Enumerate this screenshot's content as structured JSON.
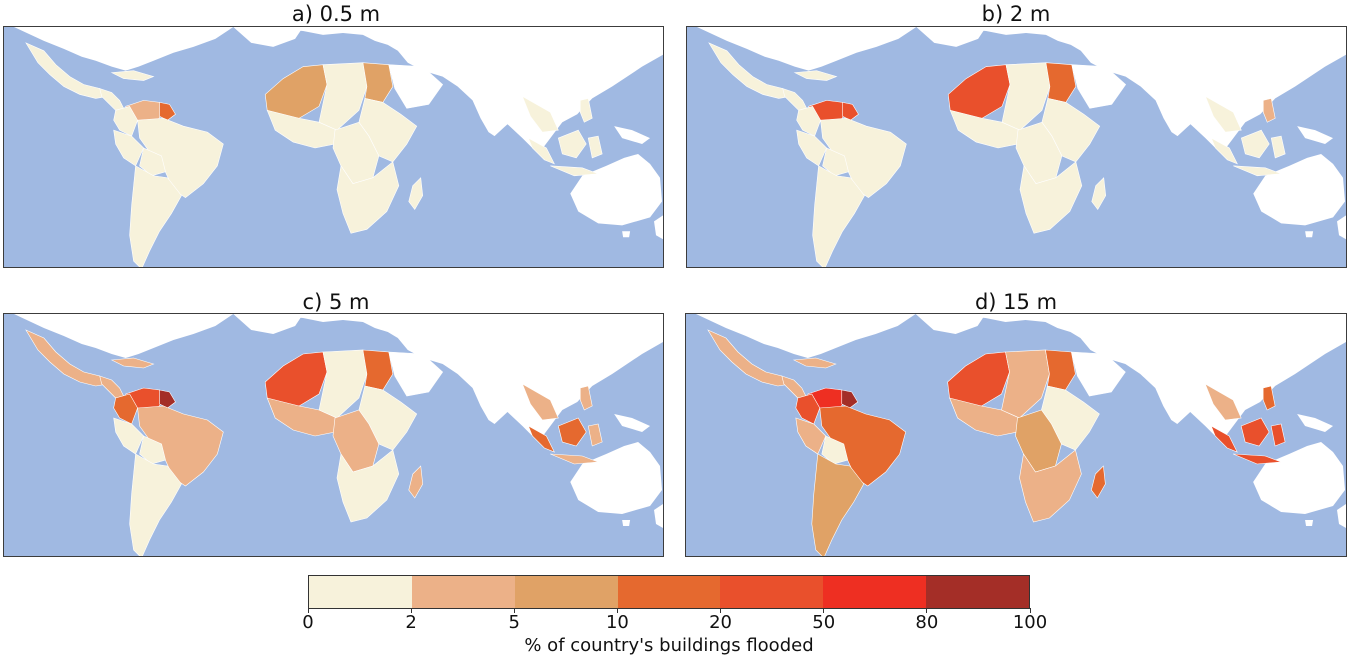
{
  "colors": {
    "ocean": "#a0b9e2",
    "land_nodata": "#ffffff",
    "bins": [
      "#f7f2db",
      "#ecb188",
      "#e0a266",
      "#e5692f",
      "#e9502c",
      "#ee2f22",
      "#a42e27"
    ]
  },
  "panels": [
    {
      "title": "a) 0.5 m"
    },
    {
      "title": "b) 2 m"
    },
    {
      "title": "c) 5 m"
    },
    {
      "title": "d) 15 m"
    }
  ],
  "legend": {
    "ticks": [
      "0",
      "2",
      "5",
      "10",
      "20",
      "50",
      "80",
      "100"
    ],
    "title": "% of country's buildings flooded"
  }
}
